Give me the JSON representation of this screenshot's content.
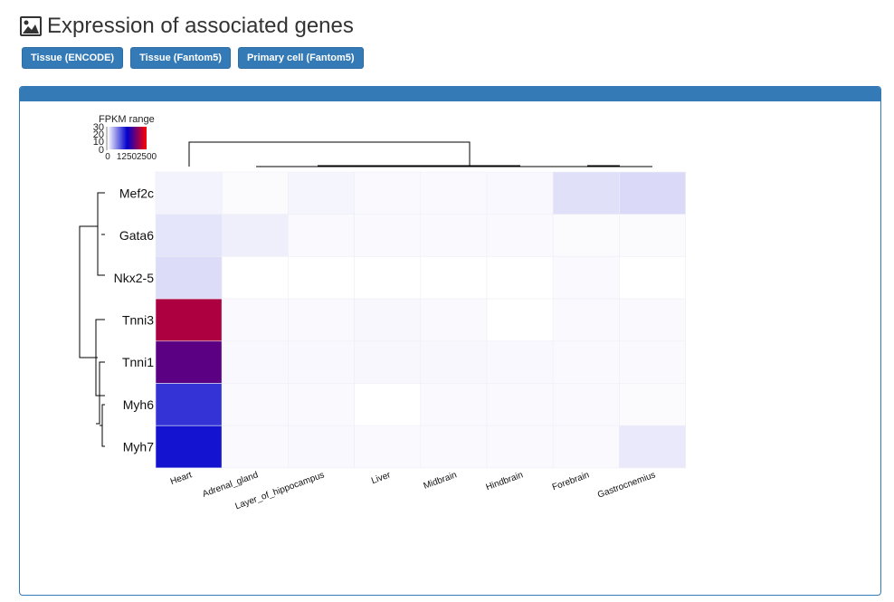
{
  "page": {
    "title": "Expression of associated genes",
    "title_icon": "image-icon"
  },
  "buttons": [
    {
      "label": "Tissue (ENCODE)"
    },
    {
      "label": "Tissue (Fantom5)"
    },
    {
      "label": "Primary cell (Fantom5)"
    }
  ],
  "colors": {
    "accent": "#337ab7",
    "scale_low": "#ffffff",
    "scale_mid": "#0000cc",
    "scale_high": "#ff0000"
  },
  "chart_data": {
    "type": "heatmap",
    "legend_title": "FPKM range",
    "legend_count_ticks": [
      "30",
      "20",
      "10",
      "0"
    ],
    "legend_value_ticks": [
      "0",
      "1250",
      "2500"
    ],
    "color_range": [
      0,
      2500
    ],
    "rows": [
      "Mef2c",
      "Gata6",
      "Nkx2-5",
      "Tnni3",
      "Tnni1",
      "Myh6",
      "Myh7"
    ],
    "columns": [
      "Heart",
      "Adrenal_gland",
      "Layer_of_hippocampus",
      "Liver",
      "Midbrain",
      "Hindbrain",
      "Forebrain",
      "Gastrocnemius"
    ],
    "values": [
      [
        60,
        20,
        50,
        25,
        30,
        35,
        150,
        180
      ],
      [
        130,
        80,
        30,
        25,
        30,
        30,
        20,
        20
      ],
      [
        170,
        0,
        0,
        0,
        0,
        0,
        30,
        0
      ],
      [
        2100,
        30,
        30,
        40,
        30,
        0,
        30,
        25
      ],
      [
        1700,
        35,
        35,
        40,
        40,
        35,
        30,
        30
      ],
      [
        1000,
        30,
        30,
        0,
        30,
        30,
        25,
        20
      ],
      [
        1150,
        30,
        35,
        30,
        30,
        30,
        25,
        110
      ]
    ]
  }
}
